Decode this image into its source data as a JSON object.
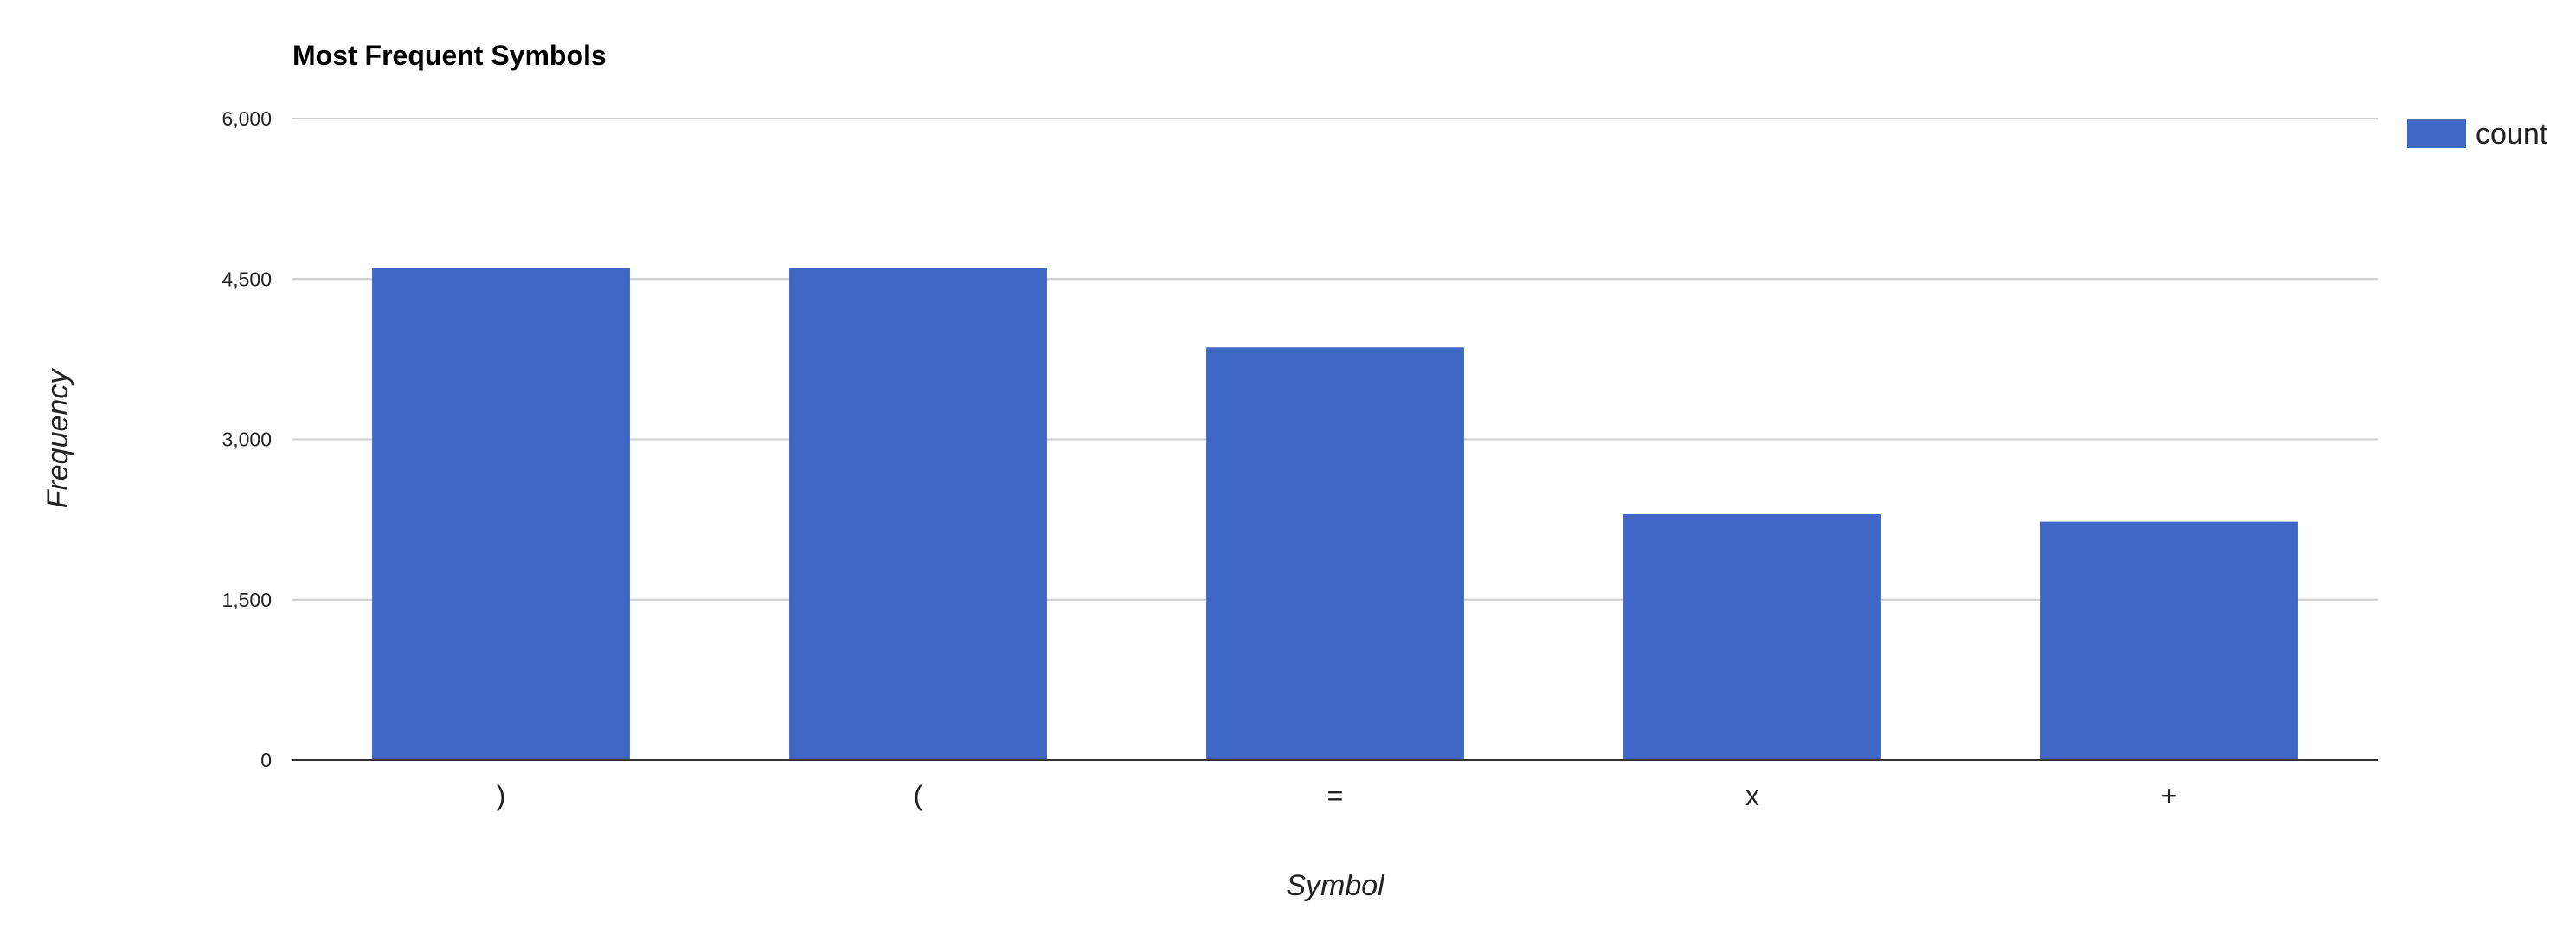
{
  "chart_data": {
    "type": "bar",
    "title": "Most Frequent Symbols",
    "xlabel": "Symbol",
    "ylabel": "Frequency",
    "categories": [
      ")",
      "(",
      "=",
      "x",
      "+"
    ],
    "series": [
      {
        "name": "count",
        "values": [
          4600,
          4600,
          3860,
          2300,
          2230
        ],
        "color": "#3f67c6"
      }
    ],
    "ylim": [
      0,
      6000
    ],
    "yticks": [
      0,
      1500,
      3000,
      4500,
      6000
    ],
    "ytick_labels": [
      "0",
      "1,500",
      "3,000",
      "4,500",
      "6,000"
    ],
    "grid": true,
    "legend": "right"
  }
}
